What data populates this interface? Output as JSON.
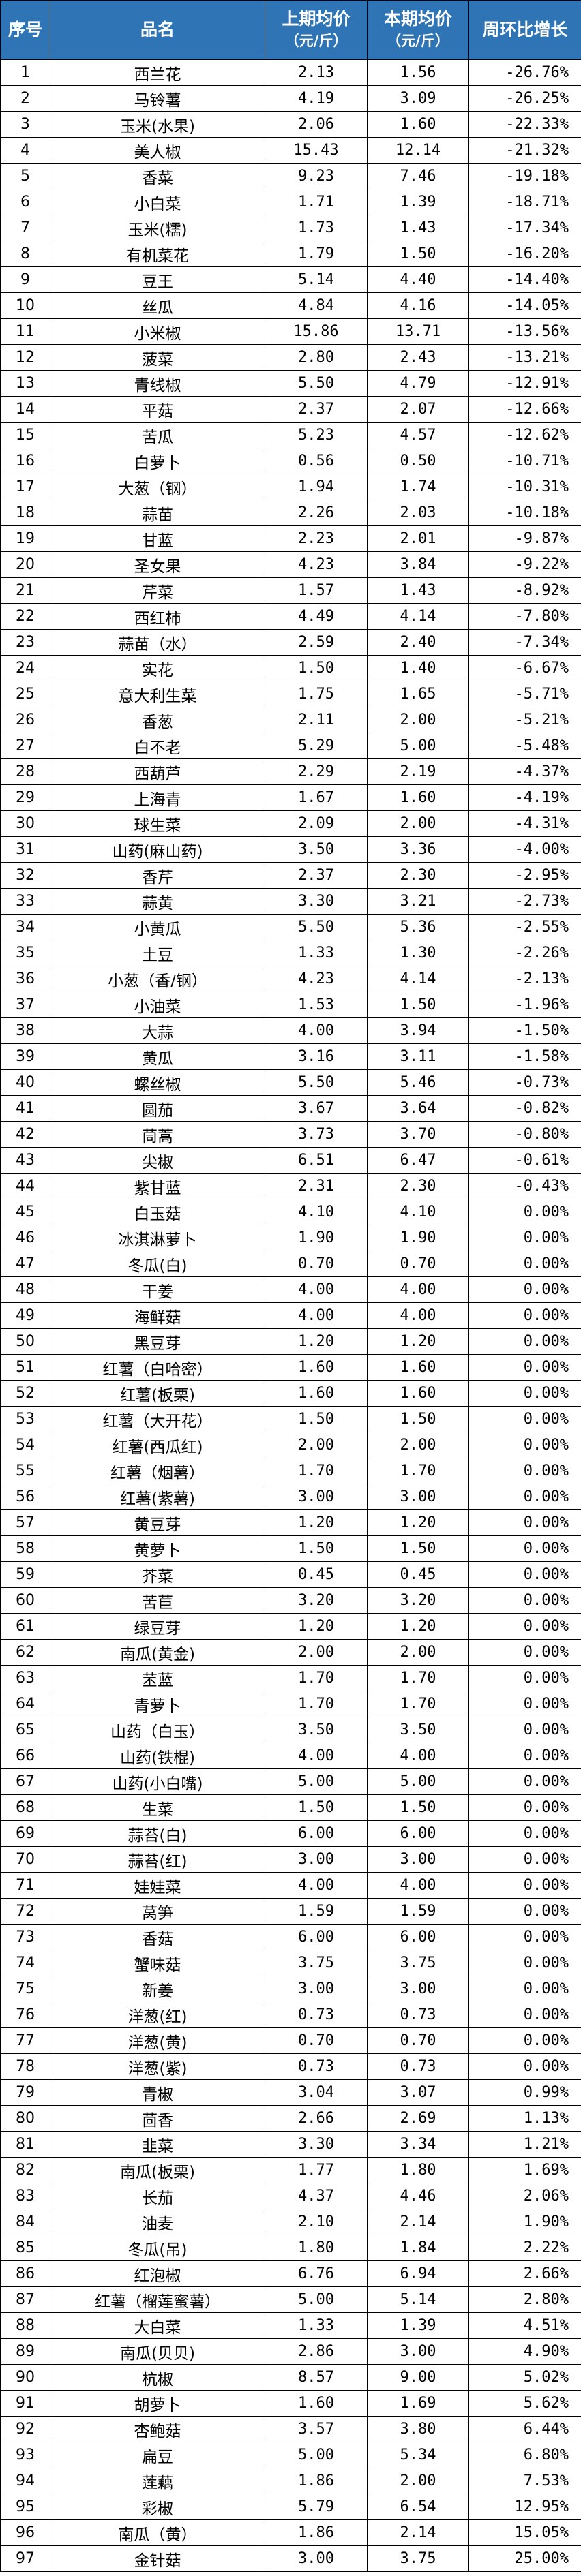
{
  "table": {
    "headers": {
      "index": "序号",
      "name": "品名",
      "prev_line1": "上期均价",
      "prev_line2": "（元/斤）",
      "curr_line1": "本期均价",
      "curr_line2": "（元/斤）",
      "change": "周环比增长"
    },
    "rows": [
      [
        "1",
        "西兰花",
        "2.13",
        "1.56",
        "-26.76%"
      ],
      [
        "2",
        "马铃薯",
        "4.19",
        "3.09",
        "-26.25%"
      ],
      [
        "3",
        "玉米(水果)",
        "2.06",
        "1.60",
        "-22.33%"
      ],
      [
        "4",
        "美人椒",
        "15.43",
        "12.14",
        "-21.32%"
      ],
      [
        "5",
        "香菜",
        "9.23",
        "7.46",
        "-19.18%"
      ],
      [
        "6",
        "小白菜",
        "1.71",
        "1.39",
        "-18.71%"
      ],
      [
        "7",
        "玉米(糯)",
        "1.73",
        "1.43",
        "-17.34%"
      ],
      [
        "8",
        "有机菜花",
        "1.79",
        "1.50",
        "-16.20%"
      ],
      [
        "9",
        "豆王",
        "5.14",
        "4.40",
        "-14.40%"
      ],
      [
        "10",
        "丝瓜",
        "4.84",
        "4.16",
        "-14.05%"
      ],
      [
        "11",
        "小米椒",
        "15.86",
        "13.71",
        "-13.56%"
      ],
      [
        "12",
        "菠菜",
        "2.80",
        "2.43",
        "-13.21%"
      ],
      [
        "13",
        "青线椒",
        "5.50",
        "4.79",
        "-12.91%"
      ],
      [
        "14",
        "平菇",
        "2.37",
        "2.07",
        "-12.66%"
      ],
      [
        "15",
        "苦瓜",
        "5.23",
        "4.57",
        "-12.62%"
      ],
      [
        "16",
        "白萝卜",
        "0.56",
        "0.50",
        "-10.71%"
      ],
      [
        "17",
        "大葱（钢）",
        "1.94",
        "1.74",
        "-10.31%"
      ],
      [
        "18",
        "蒜苗",
        "2.26",
        "2.03",
        "-10.18%"
      ],
      [
        "19",
        "甘蓝",
        "2.23",
        "2.01",
        "-9.87%"
      ],
      [
        "20",
        "圣女果",
        "4.23",
        "3.84",
        "-9.22%"
      ],
      [
        "21",
        "芹菜",
        "1.57",
        "1.43",
        "-8.92%"
      ],
      [
        "22",
        "西红柿",
        "4.49",
        "4.14",
        "-7.80%"
      ],
      [
        "23",
        "蒜苗（水）",
        "2.59",
        "2.40",
        "-7.34%"
      ],
      [
        "24",
        "实花",
        "1.50",
        "1.40",
        "-6.67%"
      ],
      [
        "25",
        "意大利生菜",
        "1.75",
        "1.65",
        "-5.71%"
      ],
      [
        "26",
        "香葱",
        "2.11",
        "2.00",
        "-5.21%"
      ],
      [
        "27",
        "白不老",
        "5.29",
        "5.00",
        "-5.48%"
      ],
      [
        "28",
        "西葫芦",
        "2.29",
        "2.19",
        "-4.37%"
      ],
      [
        "29",
        "上海青",
        "1.67",
        "1.60",
        "-4.19%"
      ],
      [
        "30",
        "球生菜",
        "2.09",
        "2.00",
        "-4.31%"
      ],
      [
        "31",
        "山药(麻山药)",
        "3.50",
        "3.36",
        "-4.00%"
      ],
      [
        "32",
        "香芹",
        "2.37",
        "2.30",
        "-2.95%"
      ],
      [
        "33",
        "蒜黄",
        "3.30",
        "3.21",
        "-2.73%"
      ],
      [
        "34",
        "小黄瓜",
        "5.50",
        "5.36",
        "-2.55%"
      ],
      [
        "35",
        "土豆",
        "1.33",
        "1.30",
        "-2.26%"
      ],
      [
        "36",
        "小葱（香/钢）",
        "4.23",
        "4.14",
        "-2.13%"
      ],
      [
        "37",
        "小油菜",
        "1.53",
        "1.50",
        "-1.96%"
      ],
      [
        "38",
        "大蒜",
        "4.00",
        "3.94",
        "-1.50%"
      ],
      [
        "39",
        "黄瓜",
        "3.16",
        "3.11",
        "-1.58%"
      ],
      [
        "40",
        "螺丝椒",
        "5.50",
        "5.46",
        "-0.73%"
      ],
      [
        "41",
        "圆茄",
        "3.67",
        "3.64",
        "-0.82%"
      ],
      [
        "42",
        "茼蒿",
        "3.73",
        "3.70",
        "-0.80%"
      ],
      [
        "43",
        "尖椒",
        "6.51",
        "6.47",
        "-0.61%"
      ],
      [
        "44",
        "紫甘蓝",
        "2.31",
        "2.30",
        "-0.43%"
      ],
      [
        "45",
        "白玉菇",
        "4.10",
        "4.10",
        "0.00%"
      ],
      [
        "46",
        "冰淇淋萝卜",
        "1.90",
        "1.90",
        "0.00%"
      ],
      [
        "47",
        "冬瓜(白)",
        "0.70",
        "0.70",
        "0.00%"
      ],
      [
        "48",
        "干姜",
        "4.00",
        "4.00",
        "0.00%"
      ],
      [
        "49",
        "海鲜菇",
        "4.00",
        "4.00",
        "0.00%"
      ],
      [
        "50",
        "黑豆芽",
        "1.20",
        "1.20",
        "0.00%"
      ],
      [
        "51",
        "红薯（白哈密）",
        "1.60",
        "1.60",
        "0.00%"
      ],
      [
        "52",
        "红薯(板栗)",
        "1.60",
        "1.60",
        "0.00%"
      ],
      [
        "53",
        "红薯（大开花）",
        "1.50",
        "1.50",
        "0.00%"
      ],
      [
        "54",
        "红薯(西瓜红)",
        "2.00",
        "2.00",
        "0.00%"
      ],
      [
        "55",
        "红薯（烟薯）",
        "1.70",
        "1.70",
        "0.00%"
      ],
      [
        "56",
        "红薯(紫薯)",
        "3.00",
        "3.00",
        "0.00%"
      ],
      [
        "57",
        "黄豆芽",
        "1.20",
        "1.20",
        "0.00%"
      ],
      [
        "58",
        "黄萝卜",
        "1.50",
        "1.50",
        "0.00%"
      ],
      [
        "59",
        "芥菜",
        "0.45",
        "0.45",
        "0.00%"
      ],
      [
        "60",
        "苦苣",
        "3.20",
        "3.20",
        "0.00%"
      ],
      [
        "61",
        "绿豆芽",
        "1.20",
        "1.20",
        "0.00%"
      ],
      [
        "62",
        "南瓜(黄金)",
        "2.00",
        "2.00",
        "0.00%"
      ],
      [
        "63",
        "苤蓝",
        "1.70",
        "1.70",
        "0.00%"
      ],
      [
        "64",
        "青萝卜",
        "1.70",
        "1.70",
        "0.00%"
      ],
      [
        "65",
        "山药（白玉）",
        "3.50",
        "3.50",
        "0.00%"
      ],
      [
        "66",
        "山药(铁棍)",
        "4.00",
        "4.00",
        "0.00%"
      ],
      [
        "67",
        "山药(小白嘴)",
        "5.00",
        "5.00",
        "0.00%"
      ],
      [
        "68",
        "生菜",
        "1.50",
        "1.50",
        "0.00%"
      ],
      [
        "69",
        "蒜苔(白)",
        "6.00",
        "6.00",
        "0.00%"
      ],
      [
        "70",
        "蒜苔(红)",
        "3.00",
        "3.00",
        "0.00%"
      ],
      [
        "71",
        "娃娃菜",
        "4.00",
        "4.00",
        "0.00%"
      ],
      [
        "72",
        "莴笋",
        "1.59",
        "1.59",
        "0.00%"
      ],
      [
        "73",
        "香菇",
        "6.00",
        "6.00",
        "0.00%"
      ],
      [
        "74",
        "蟹味菇",
        "3.75",
        "3.75",
        "0.00%"
      ],
      [
        "75",
        "新姜",
        "3.00",
        "3.00",
        "0.00%"
      ],
      [
        "76",
        "洋葱(红)",
        "0.73",
        "0.73",
        "0.00%"
      ],
      [
        "77",
        "洋葱(黄)",
        "0.70",
        "0.70",
        "0.00%"
      ],
      [
        "78",
        "洋葱(紫)",
        "0.73",
        "0.73",
        "0.00%"
      ],
      [
        "79",
        "青椒",
        "3.04",
        "3.07",
        "0.99%"
      ],
      [
        "80",
        "茴香",
        "2.66",
        "2.69",
        "1.13%"
      ],
      [
        "81",
        "韭菜",
        "3.30",
        "3.34",
        "1.21%"
      ],
      [
        "82",
        "南瓜(板栗)",
        "1.77",
        "1.80",
        "1.69%"
      ],
      [
        "83",
        "长茄",
        "4.37",
        "4.46",
        "2.06%"
      ],
      [
        "84",
        "油麦",
        "2.10",
        "2.14",
        "1.90%"
      ],
      [
        "85",
        "冬瓜(吊)",
        "1.80",
        "1.84",
        "2.22%"
      ],
      [
        "86",
        "红泡椒",
        "6.76",
        "6.94",
        "2.66%"
      ],
      [
        "87",
        "红薯（榴莲蜜薯）",
        "5.00",
        "5.14",
        "2.80%"
      ],
      [
        "88",
        "大白菜",
        "1.33",
        "1.39",
        "4.51%"
      ],
      [
        "89",
        "南瓜(贝贝)",
        "2.86",
        "3.00",
        "4.90%"
      ],
      [
        "90",
        "杭椒",
        "8.57",
        "9.00",
        "5.02%"
      ],
      [
        "91",
        "胡萝卜",
        "1.60",
        "1.69",
        "5.62%"
      ],
      [
        "92",
        "杏鲍菇",
        "3.57",
        "3.80",
        "6.44%"
      ],
      [
        "93",
        "扁豆",
        "5.00",
        "5.34",
        "6.80%"
      ],
      [
        "94",
        "莲藕",
        "1.86",
        "2.00",
        "7.53%"
      ],
      [
        "95",
        "彩椒",
        "5.79",
        "6.54",
        "12.95%"
      ],
      [
        "96",
        "南瓜（黄）",
        "1.86",
        "2.14",
        "15.05%"
      ],
      [
        "97",
        "金针菇",
        "3.00",
        "3.75",
        "25.00%"
      ]
    ]
  }
}
